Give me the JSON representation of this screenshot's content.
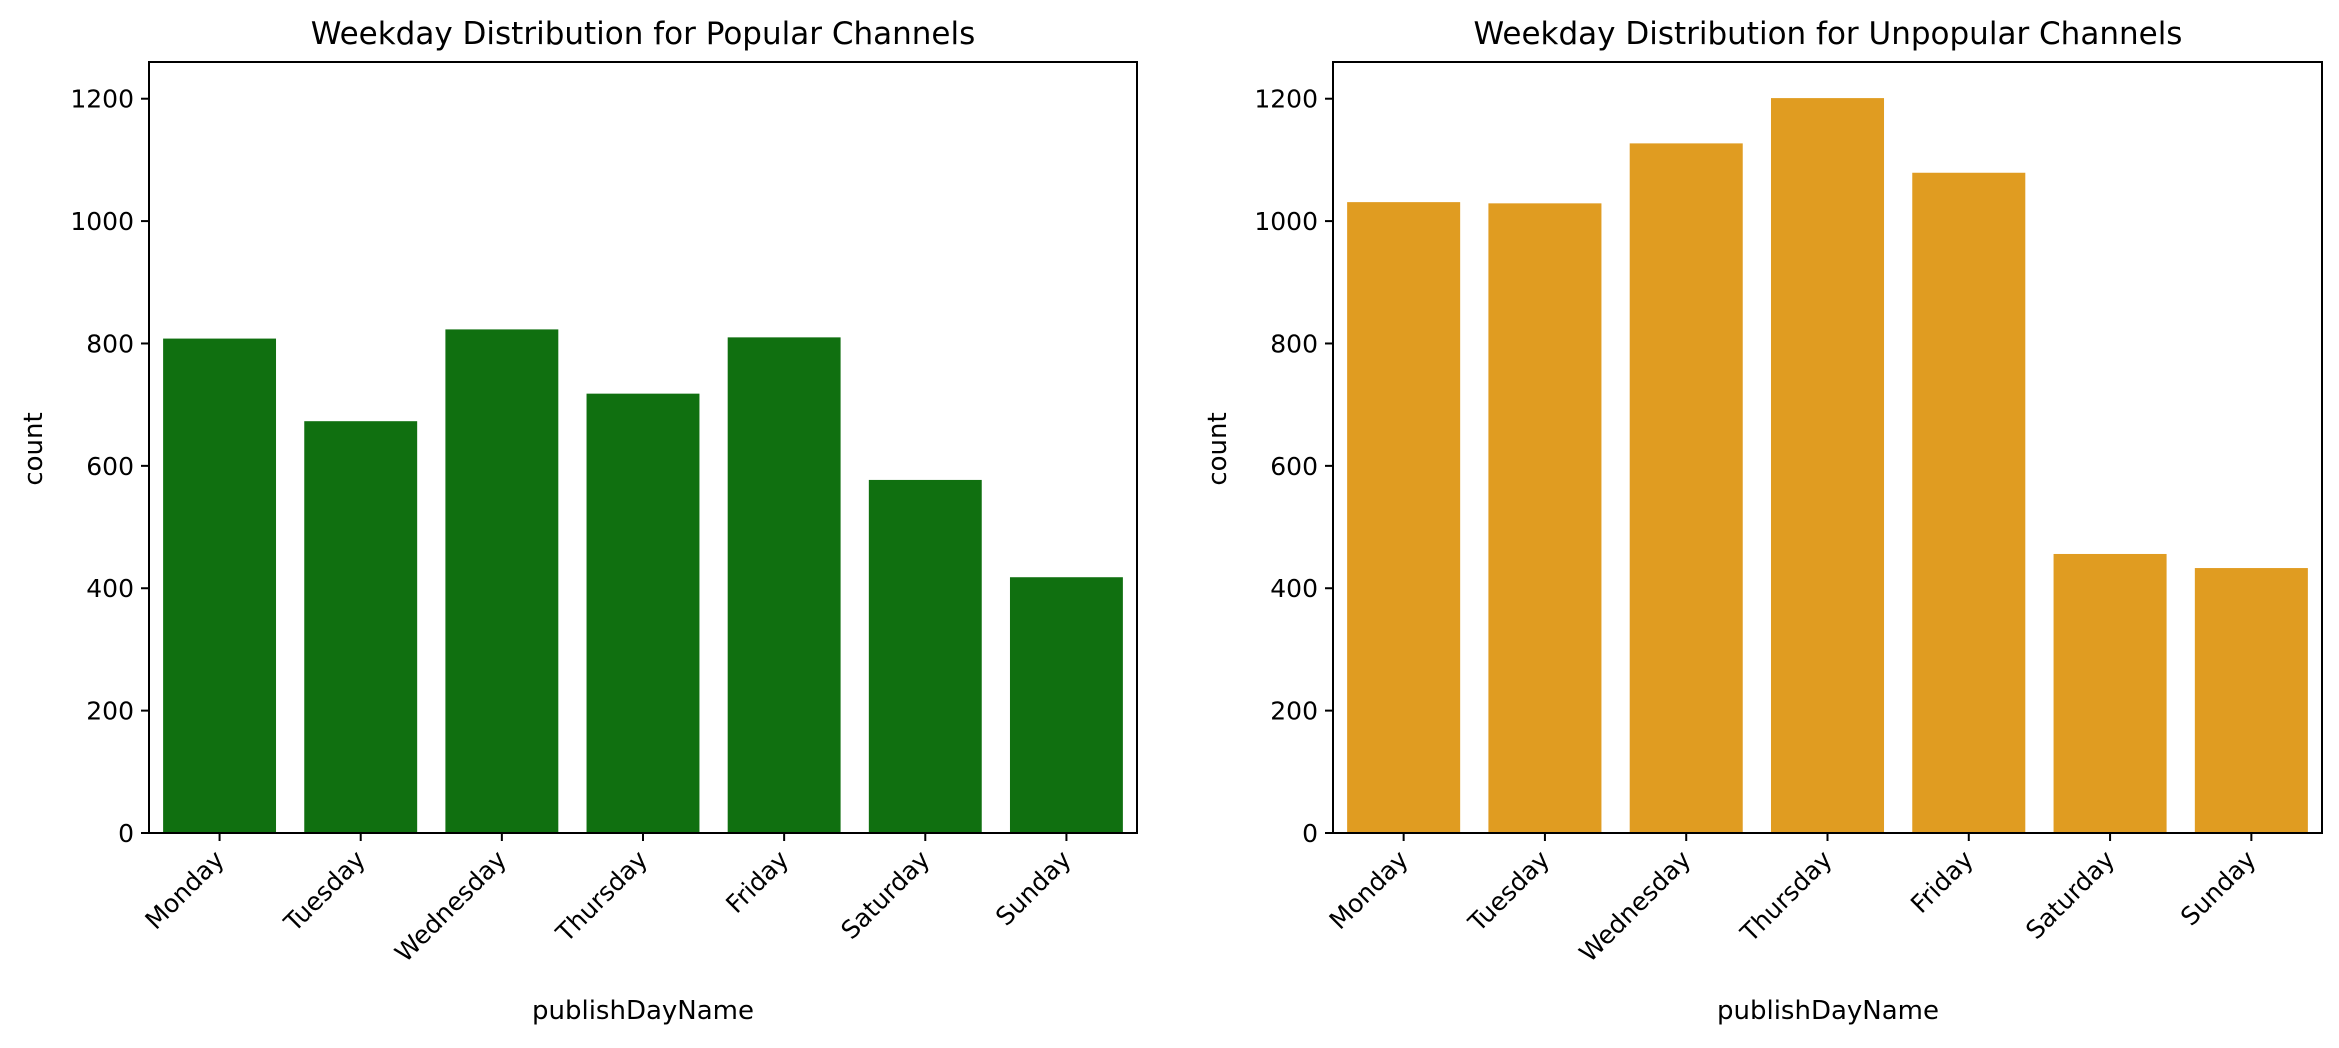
{
  "chart_data": [
    {
      "type": "bar",
      "title": "Weekday Distribution for Popular Channels",
      "xlabel": "publishDayName",
      "ylabel": "count",
      "categories": [
        "Monday",
        "Tuesday",
        "Wednesday",
        "Thursday",
        "Friday",
        "Saturday",
        "Sunday"
      ],
      "values": [
        808,
        673,
        823,
        718,
        810,
        577,
        418
      ],
      "ylim": [
        0,
        1260
      ],
      "yticks": [
        "0",
        "200",
        "400",
        "600",
        "800",
        "1000",
        "1200"
      ],
      "color": "#107010",
      "grid": false
    },
    {
      "type": "bar",
      "title": "Weekday Distribution for Unpopular Channels",
      "xlabel": "publishDayName",
      "ylabel": "count",
      "categories": [
        "Monday",
        "Tuesday",
        "Wednesday",
        "Thursday",
        "Friday",
        "Saturday",
        "Sunday"
      ],
      "values": [
        1031,
        1029,
        1127,
        1201,
        1079,
        456,
        433
      ],
      "ylim": [
        0,
        1260
      ],
      "yticks": [
        "0",
        "200",
        "400",
        "600",
        "800",
        "1000",
        "1200"
      ],
      "color": "#e09c21",
      "grid": false
    }
  ]
}
